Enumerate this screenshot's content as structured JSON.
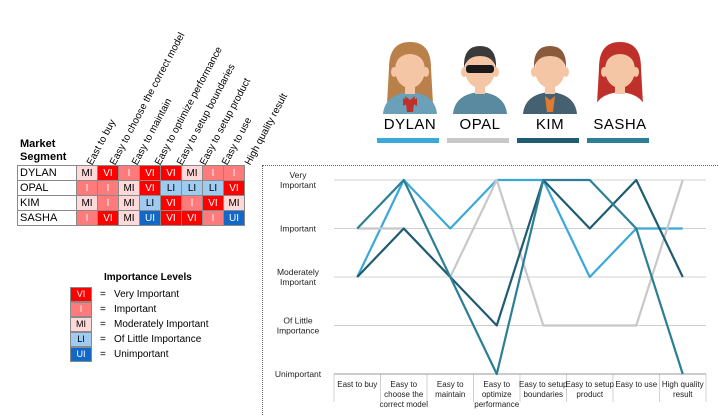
{
  "matrix": {
    "title_line1": "Market",
    "title_line2": "Segment",
    "columns": [
      "East to buy",
      "Easy to choose the correct model",
      "Easy to maintain",
      "Easy to optimize performance",
      "Easy to setup boundaries",
      "Easy to setup product",
      "Easy to use",
      "High quality result"
    ],
    "rows": [
      {
        "name": "DYLAN",
        "values": [
          "MI",
          "VI",
          "I",
          "VI",
          "VI",
          "MI",
          "I",
          "I"
        ]
      },
      {
        "name": "OPAL",
        "values": [
          "I",
          "I",
          "MI",
          "VI",
          "LI",
          "LI",
          "LI",
          "VI"
        ]
      },
      {
        "name": "KIM",
        "values": [
          "MI",
          "I",
          "MI",
          "LI",
          "VI",
          "I",
          "VI",
          "MI"
        ]
      },
      {
        "name": "SASHA",
        "values": [
          "I",
          "VI",
          "MI",
          "UI",
          "VI",
          "VI",
          "I",
          "UI"
        ]
      }
    ]
  },
  "legend": {
    "title": "Importance Levels",
    "equals": "=",
    "items": [
      {
        "code": "VI",
        "label": "Very Important",
        "color": "#ff0000",
        "text_color": "#ffffff"
      },
      {
        "code": "I",
        "label": "Important",
        "color": "#ff7b7b",
        "text_color": "#ffffff"
      },
      {
        "code": "MI",
        "label": "Moderately Important",
        "color": "#ffd9d9",
        "text_color": "#000000"
      },
      {
        "code": "LI",
        "label": "Of Little Importance",
        "color": "#9fcbf0",
        "text_color": "#000000"
      },
      {
        "code": "UI",
        "label": "Unimportant",
        "color": "#1168c8",
        "text_color": "#ffffff"
      }
    ]
  },
  "personas": [
    {
      "name": "DYLAN",
      "color": "#3aa8d8"
    },
    {
      "name": "OPAL",
      "color": "#c8c8c8"
    },
    {
      "name": "KIM",
      "color": "#1f5c73"
    },
    {
      "name": "SASHA",
      "color": "#2c7f94"
    }
  ],
  "chart_data": {
    "type": "line",
    "categories": [
      "East to buy",
      "Easy to choose the correct model",
      "Easy to maintain",
      "Easy to optimize performance",
      "Easy to setup boundaries",
      "Easy to setup product",
      "Easy to use",
      "High quality result"
    ],
    "category_lines": [
      [
        "East to buy"
      ],
      [
        "Easy to",
        "choose the",
        "correct model"
      ],
      [
        "Easy to",
        "maintain"
      ],
      [
        "Easy to",
        "optimize",
        "performance"
      ],
      [
        "Easy to setup",
        "boundaries"
      ],
      [
        "Easy to setup",
        "product"
      ],
      [
        "Easy to use"
      ],
      [
        "High quality",
        "result"
      ]
    ],
    "levels": [
      {
        "value": 0,
        "lines": [
          "Unimportant"
        ]
      },
      {
        "value": 1,
        "lines": [
          "Of Little",
          "Importance"
        ]
      },
      {
        "value": 2,
        "lines": [
          "Moderately",
          "Important"
        ]
      },
      {
        "value": 3,
        "lines": [
          "Important"
        ]
      },
      {
        "value": 4,
        "lines": [
          "Very",
          "Important"
        ]
      }
    ],
    "ylim": [
      0,
      4
    ],
    "series": [
      {
        "name": "DYLAN",
        "color": "#3aa8d8",
        "values": [
          2,
          4,
          3,
          4,
          4,
          2,
          3,
          3
        ]
      },
      {
        "name": "OPAL",
        "color": "#c8c8c8",
        "values": [
          3,
          3,
          2,
          4,
          1,
          1,
          1,
          4
        ]
      },
      {
        "name": "KIM",
        "color": "#1f5c73",
        "values": [
          2,
          3,
          2,
          1,
          4,
          3,
          4,
          2
        ]
      },
      {
        "name": "SASHA",
        "color": "#2c7f94",
        "values": [
          3,
          4,
          2,
          0,
          4,
          4,
          3,
          0
        ]
      }
    ]
  }
}
